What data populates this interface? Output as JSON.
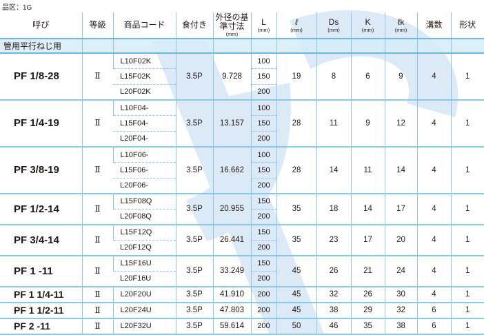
{
  "category_label": "品区：1G",
  "headers": {
    "designation": "呼び",
    "grade": "等級",
    "product_code": "商品コード",
    "chamfer": "食付き",
    "pitch_diameter": "外径の基準寸法",
    "pitch_diameter_unit": "(mm)",
    "L": "L",
    "L_unit": "(mm)",
    "l": "ℓ",
    "l_unit": "(mm)",
    "Ds": "Ds",
    "Ds_unit": "(mm)",
    "K": "K",
    "K_unit": "(mm)",
    "lk": "ℓk",
    "lk_unit": "(mm)",
    "flutes": "溝数",
    "shape": "形状"
  },
  "section_label": "管用平行ねじ用",
  "rows": [
    {
      "name": "PF 1/8-28",
      "grade": "Ⅱ",
      "codes": [
        "L10F02K",
        "L15F02K",
        "L20F02K"
      ],
      "chamfer": "3.5P",
      "diameter": "9.728",
      "lengths": [
        "100",
        "150",
        "200"
      ],
      "l": "19",
      "Ds": "8",
      "K": "6",
      "lk": "9",
      "flutes": "4",
      "shape": "1"
    },
    {
      "name": "PF 1/4-19",
      "grade": "Ⅱ",
      "codes": [
        "L10F04-",
        "L15F04-",
        "L20F04-"
      ],
      "chamfer": "3.5P",
      "diameter": "13.157",
      "lengths": [
        "100",
        "150",
        "200"
      ],
      "l": "28",
      "Ds": "11",
      "K": "9",
      "lk": "12",
      "flutes": "4",
      "shape": "1"
    },
    {
      "name": "PF 3/8-19",
      "grade": "Ⅱ",
      "codes": [
        "L10F06-",
        "L15F06-",
        "L20F06-"
      ],
      "chamfer": "3.5P",
      "diameter": "16.662",
      "lengths": [
        "100",
        "150",
        "200"
      ],
      "l": "28",
      "Ds": "14",
      "K": "11",
      "lk": "14",
      "flutes": "4",
      "shape": "1"
    },
    {
      "name": "PF 1/2-14",
      "grade": "Ⅱ",
      "codes": [
        "L15F08Q",
        "L20F08Q"
      ],
      "chamfer": "3.5P",
      "diameter": "20.955",
      "lengths": [
        "150",
        "200"
      ],
      "l": "35",
      "Ds": "18",
      "K": "14",
      "lk": "17",
      "flutes": "4",
      "shape": "1"
    },
    {
      "name": "PF 3/4-14",
      "grade": "Ⅱ",
      "codes": [
        "L15F12Q",
        "L20F12Q"
      ],
      "chamfer": "3.5P",
      "diameter": "26.441",
      "lengths": [
        "150",
        "200"
      ],
      "l": "35",
      "Ds": "23",
      "K": "17",
      "lk": "20",
      "flutes": "4",
      "shape": "1"
    },
    {
      "name": "PF 1 -11",
      "grade": "Ⅱ",
      "codes": [
        "L15F16U",
        "L20F16U"
      ],
      "chamfer": "3.5P",
      "diameter": "33.249",
      "lengths": [
        "150",
        "200"
      ],
      "l": "45",
      "Ds": "26",
      "K": "21",
      "lk": "24",
      "flutes": "4",
      "shape": "1"
    },
    {
      "name": "PF 1 1/4-11",
      "grade": "Ⅱ",
      "codes": [
        "L20F20U"
      ],
      "chamfer": "3.5P",
      "diameter": "41.910",
      "lengths": [
        "200"
      ],
      "l": "45",
      "Ds": "32",
      "K": "26",
      "lk": "30",
      "flutes": "4",
      "shape": "1"
    },
    {
      "name": "PF 1 1/2-11",
      "grade": "Ⅱ",
      "codes": [
        "L20F24U"
      ],
      "chamfer": "3.5P",
      "diameter": "47.803",
      "lengths": [
        "200"
      ],
      "l": "45",
      "Ds": "38",
      "K": "29",
      "lk": "32",
      "flutes": "6",
      "shape": "1"
    },
    {
      "name": "PF 2 -11",
      "grade": "Ⅱ",
      "codes": [
        "L20F32U"
      ],
      "chamfer": "3.5P",
      "diameter": "59.614",
      "lengths": [
        "200"
      ],
      "l": "50",
      "Ds": "46",
      "K": "35",
      "lk": "38",
      "flutes": "6",
      "shape": "1"
    }
  ],
  "colors": {
    "rule": "#8cc8ea",
    "section_bg": "#d6ecfa",
    "watermark": "#dbe8f6"
  }
}
